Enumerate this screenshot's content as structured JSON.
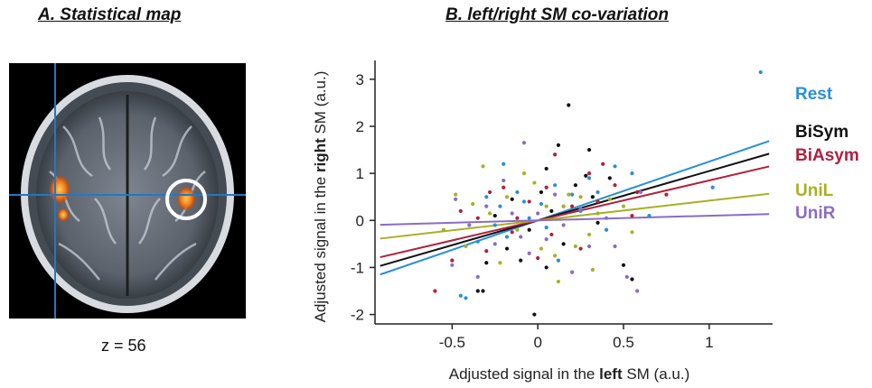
{
  "panel_a": {
    "title": "A. Statistical map",
    "slice_label": "z",
    "slice_value": "56",
    "colors": {
      "activation": "#f07a1a",
      "crosshair": "#1f78c8",
      "roi_circle": "#ffffff"
    }
  },
  "panel_b": {
    "title": "B. left/right SM co-variation"
  },
  "chart_data": {
    "type": "scatter",
    "title": "B. left/right SM co-variation",
    "xlabel_prefix": "Adjusted signal in the ",
    "xlabel_bold": "left",
    "xlabel_suffix": " SM (a.u.)",
    "ylabel_prefix": "Adjusted signal in the ",
    "ylabel_bold": "right",
    "ylabel_suffix": " SM (a.u.)",
    "xlim": [
      -0.95,
      1.37
    ],
    "ylim": [
      -2.2,
      3.4
    ],
    "xticks": [
      -0.5,
      0,
      0.5,
      1
    ],
    "xtick_labels": [
      "-0.5",
      "0",
      "0.5",
      "1"
    ],
    "yticks": [
      -2,
      -1,
      0,
      1,
      2,
      3
    ],
    "ytick_labels": [
      "-2",
      "-1",
      "0",
      "1",
      "2",
      "3"
    ],
    "grid": false,
    "legend_position": "right",
    "series": [
      {
        "name": "Rest",
        "color": "#2a8fd6",
        "slope": 1.25,
        "points": [
          [
            -0.45,
            -1.6
          ],
          [
            -0.42,
            -1.65
          ],
          [
            -0.35,
            -0.45
          ],
          [
            -0.3,
            0.5
          ],
          [
            -0.25,
            -0.1
          ],
          [
            -0.22,
            0.3
          ],
          [
            -0.18,
            -0.35
          ],
          [
            -0.12,
            0.6
          ],
          [
            -0.08,
            0.4
          ],
          [
            -0.05,
            0.05
          ],
          [
            0.02,
            0.35
          ],
          [
            0.05,
            -0.15
          ],
          [
            0.1,
            0.75
          ],
          [
            0.15,
            0.3
          ],
          [
            0.2,
            0.55
          ],
          [
            0.25,
            0.2
          ],
          [
            0.3,
            0.9
          ],
          [
            0.35,
            0.6
          ],
          [
            0.4,
            -0.2
          ],
          [
            0.12,
            -0.85
          ],
          [
            0.55,
            1.0
          ],
          [
            0.65,
            0.1
          ],
          [
            1.02,
            0.7
          ],
          [
            1.3,
            3.15
          ],
          [
            -0.2,
            1.2
          ],
          [
            0.45,
            1.15
          ]
        ]
      },
      {
        "name": "BiSym",
        "color": "#111111",
        "slope": 1.05,
        "points": [
          [
            -0.35,
            -1.5
          ],
          [
            -0.32,
            -1.5
          ],
          [
            -0.3,
            -0.9
          ],
          [
            -0.25,
            0.1
          ],
          [
            -0.18,
            -0.6
          ],
          [
            -0.15,
            0.45
          ],
          [
            -0.1,
            -0.85
          ],
          [
            -0.05,
            -0.2
          ],
          [
            -0.02,
            -2.0
          ],
          [
            0.02,
            0.6
          ],
          [
            0.05,
            1.1
          ],
          [
            0.08,
            0.2
          ],
          [
            0.12,
            1.6
          ],
          [
            0.15,
            -0.5
          ],
          [
            0.18,
            2.45
          ],
          [
            0.22,
            0.75
          ],
          [
            0.28,
            0.95
          ],
          [
            0.32,
            0.5
          ],
          [
            0.35,
            -0.05
          ],
          [
            0.3,
            1.5
          ],
          [
            0.5,
            -0.95
          ],
          [
            0.55,
            -1.25
          ],
          [
            0.05,
            -1.0
          ],
          [
            0.42,
            0.9
          ]
        ]
      },
      {
        "name": "BiAsym",
        "color": "#b0203e",
        "slope": 0.85,
        "points": [
          [
            -0.6,
            -1.5
          ],
          [
            -0.5,
            -0.85
          ],
          [
            -0.45,
            0.2
          ],
          [
            -0.35,
            0.05
          ],
          [
            -0.3,
            -0.65
          ],
          [
            -0.28,
            0.6
          ],
          [
            -0.2,
            0.7
          ],
          [
            -0.15,
            -0.25
          ],
          [
            -0.12,
            0.05
          ],
          [
            -0.05,
            0.4
          ],
          [
            0.0,
            -0.8
          ],
          [
            0.05,
            0.7
          ],
          [
            0.08,
            -0.3
          ],
          [
            0.1,
            1.4
          ],
          [
            0.2,
            0.3
          ],
          [
            0.25,
            -0.6
          ],
          [
            0.3,
            1.0
          ],
          [
            0.35,
            0.4
          ],
          [
            0.38,
            1.2
          ],
          [
            0.45,
            0.75
          ],
          [
            0.55,
            0.1
          ],
          [
            0.58,
            0.6
          ],
          [
            0.75,
            0.55
          ]
        ]
      },
      {
        "name": "UniL",
        "color": "#a8b026",
        "slope": 0.42,
        "points": [
          [
            -0.55,
            -0.2
          ],
          [
            -0.48,
            0.55
          ],
          [
            -0.42,
            -0.55
          ],
          [
            -0.38,
            0.35
          ],
          [
            -0.32,
            1.15
          ],
          [
            -0.28,
            0.15
          ],
          [
            -0.22,
            -0.9
          ],
          [
            -0.18,
            0.5
          ],
          [
            -0.12,
            -0.2
          ],
          [
            -0.08,
            1.0
          ],
          [
            -0.02,
            0.8
          ],
          [
            0.02,
            -0.6
          ],
          [
            0.05,
            0.3
          ],
          [
            0.1,
            -0.75
          ],
          [
            0.12,
            -1.3
          ],
          [
            0.15,
            0.3
          ],
          [
            0.18,
            0.55
          ],
          [
            0.22,
            -0.55
          ],
          [
            0.25,
            0.5
          ],
          [
            0.3,
            -0.3
          ],
          [
            0.35,
            0.15
          ],
          [
            0.42,
            0.45
          ],
          [
            0.5,
            0.3
          ],
          [
            0.55,
            -0.25
          ],
          [
            0.32,
            -1.05
          ]
        ]
      },
      {
        "name": "UniR",
        "color": "#8a6cc4",
        "slope": 0.1,
        "points": [
          [
            -0.5,
            -0.95
          ],
          [
            -0.48,
            0.45
          ],
          [
            -0.4,
            -0.1
          ],
          [
            -0.35,
            -1.2
          ],
          [
            -0.3,
            0.3
          ],
          [
            -0.25,
            -0.5
          ],
          [
            -0.2,
            0.85
          ],
          [
            -0.15,
            0.15
          ],
          [
            -0.1,
            -0.35
          ],
          [
            -0.08,
            1.65
          ],
          [
            0.0,
            0.15
          ],
          [
            0.05,
            -0.4
          ],
          [
            0.1,
            0.55
          ],
          [
            0.15,
            -0.1
          ],
          [
            0.2,
            -1.1
          ],
          [
            0.25,
            0.25
          ],
          [
            0.3,
            -0.55
          ],
          [
            0.4,
            0.05
          ],
          [
            0.45,
            -0.55
          ],
          [
            0.52,
            -1.2
          ],
          [
            0.58,
            -1.5
          ],
          [
            0.6,
            0.6
          ],
          [
            -0.05,
            -0.7
          ]
        ]
      }
    ]
  }
}
